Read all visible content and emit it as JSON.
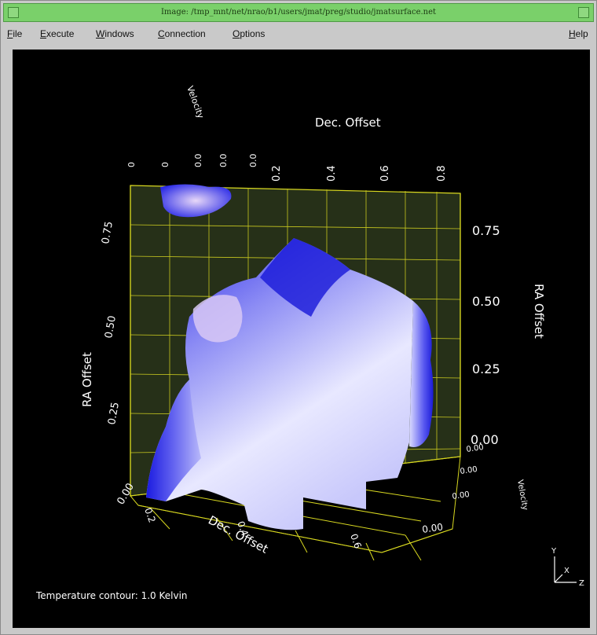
{
  "window": {
    "title": "Image: /tmp_mnt/net/nrao/b1/users/jmat/preg/studio/jmatsurface.net"
  },
  "menubar": {
    "items": [
      {
        "label": "File",
        "accel": "F",
        "rest": "ile"
      },
      {
        "label": "Execute",
        "accel": "E",
        "rest": "xecute"
      },
      {
        "label": "Windows",
        "accel": "W",
        "rest": "indows"
      },
      {
        "label": "Connection",
        "accel": "C",
        "rest": "onnection"
      },
      {
        "label": "Options",
        "accel": "O",
        "rest": "ptions"
      }
    ],
    "help": {
      "label": "Help",
      "accel": "H",
      "rest": "elp"
    }
  },
  "plot": {
    "top_axis_title": "Dec. Offset",
    "top_left_axis_title": "Velocity",
    "top_ticks": [
      "0.2",
      "0.4",
      "0.6",
      "0.8"
    ],
    "top_left_ticks": [
      "0",
      "0",
      "0.0",
      "0.0",
      "0.0"
    ],
    "left_axis_title": "RA Offset",
    "left_ticks": [
      "0.75",
      "0.50",
      "0.25",
      "0.00"
    ],
    "right_axis_title": "RA Offset",
    "right_ticks": [
      "0.75",
      "0.50",
      "0.25",
      "0.00"
    ],
    "bottom_axis_title": "Dec. Offset",
    "bottom_ticks": [
      "0.2",
      "0.4",
      "0.6"
    ],
    "depth_axis_title": "Velocity",
    "depth_ticks": [
      "0.00",
      "0.00",
      "0.00",
      "0.00"
    ],
    "triad": {
      "y": "Y",
      "x": "X",
      "z": "Z"
    },
    "colors": {
      "grid": "#d8d820",
      "surface_dark": "#1a1ae0",
      "surface_light": "#e6e6ff",
      "background": "#000000"
    }
  },
  "status": {
    "contour_label": "Temperature contour: 1.0 Kelvin"
  }
}
